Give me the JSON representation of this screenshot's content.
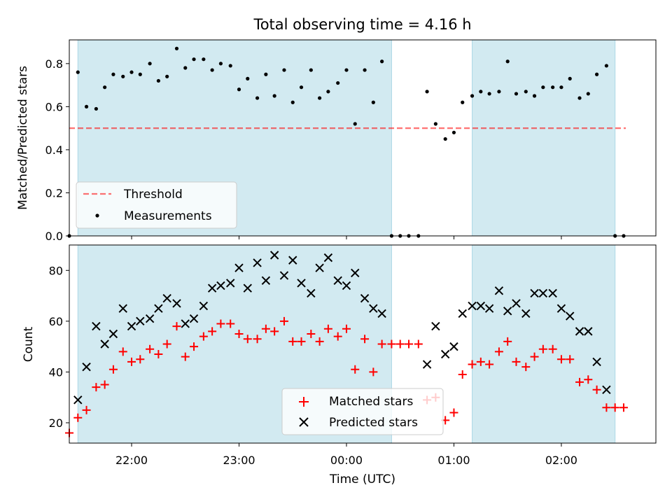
{
  "title": "Total observing time = 4.16 h",
  "colors": {
    "shade": "#add8e6",
    "threshold": "#ff0000",
    "measurement": "#000000",
    "matched": "#ff0000",
    "predicted": "#000000"
  },
  "chart_data": [
    {
      "type": "scatter",
      "panel": "top",
      "title": "Total observing time = 4.16 h",
      "ylabel": "Matched/Predicted stars",
      "xlabel": "",
      "x_unit": "hours UTC (22 = 22:00, 24 = 00:00)",
      "xlim": [
        21.42,
        26.88
      ],
      "ylim": [
        0,
        0.91
      ],
      "yticks": [
        0.0,
        0.2,
        0.4,
        0.6,
        0.8
      ],
      "ytick_labels": [
        "0.0",
        "0.2",
        "0.4",
        "0.6",
        "0.8"
      ],
      "shaded_intervals": [
        [
          21.5,
          24.42
        ],
        [
          25.17,
          26.5
        ]
      ],
      "threshold": {
        "y": 0.5,
        "x_range": [
          21.42,
          26.6
        ],
        "label": "Threshold"
      },
      "legend": {
        "position": "lower-left",
        "entries": [
          "Threshold",
          "Measurements"
        ]
      },
      "series": [
        {
          "name": "Measurements",
          "marker": "dot",
          "points": [
            [
              21.42,
              0.0
            ],
            [
              21.5,
              0.76
            ],
            [
              21.58,
              0.6
            ],
            [
              21.67,
              0.59
            ],
            [
              21.75,
              0.69
            ],
            [
              21.83,
              0.75
            ],
            [
              21.92,
              0.74
            ],
            [
              22.0,
              0.76
            ],
            [
              22.08,
              0.75
            ],
            [
              22.17,
              0.8
            ],
            [
              22.25,
              0.72
            ],
            [
              22.33,
              0.74
            ],
            [
              22.42,
              0.87
            ],
            [
              22.5,
              0.78
            ],
            [
              22.58,
              0.82
            ],
            [
              22.67,
              0.82
            ],
            [
              22.75,
              0.77
            ],
            [
              22.83,
              0.8
            ],
            [
              22.92,
              0.79
            ],
            [
              23.0,
              0.68
            ],
            [
              23.08,
              0.73
            ],
            [
              23.17,
              0.64
            ],
            [
              23.25,
              0.75
            ],
            [
              23.33,
              0.65
            ],
            [
              23.42,
              0.77
            ],
            [
              23.5,
              0.62
            ],
            [
              23.58,
              0.69
            ],
            [
              23.67,
              0.77
            ],
            [
              23.75,
              0.64
            ],
            [
              23.83,
              0.67
            ],
            [
              23.92,
              0.71
            ],
            [
              24.0,
              0.77
            ],
            [
              24.08,
              0.52
            ],
            [
              24.17,
              0.77
            ],
            [
              24.25,
              0.62
            ],
            [
              24.33,
              0.81
            ],
            [
              24.42,
              0.0
            ],
            [
              24.5,
              0.0
            ],
            [
              24.58,
              0.0
            ],
            [
              24.67,
              0.0
            ],
            [
              24.75,
              0.67
            ],
            [
              24.83,
              0.52
            ],
            [
              24.92,
              0.45
            ],
            [
              25.0,
              0.48
            ],
            [
              25.08,
              0.62
            ],
            [
              25.17,
              0.65
            ],
            [
              25.25,
              0.67
            ],
            [
              25.33,
              0.66
            ],
            [
              25.42,
              0.67
            ],
            [
              25.5,
              0.81
            ],
            [
              25.58,
              0.66
            ],
            [
              25.67,
              0.67
            ],
            [
              25.75,
              0.65
            ],
            [
              25.83,
              0.69
            ],
            [
              25.92,
              0.69
            ],
            [
              26.0,
              0.69
            ],
            [
              26.08,
              0.73
            ],
            [
              26.17,
              0.64
            ],
            [
              26.25,
              0.66
            ],
            [
              26.33,
              0.75
            ],
            [
              26.42,
              0.79
            ],
            [
              26.5,
              0.0
            ],
            [
              26.58,
              0.0
            ]
          ]
        }
      ]
    },
    {
      "type": "scatter",
      "panel": "bottom",
      "ylabel": "Count",
      "xlabel": "Time (UTC)",
      "x_unit": "hours UTC (22 = 22:00, 24 = 00:00)",
      "xlim": [
        21.42,
        26.88
      ],
      "ylim": [
        12,
        90
      ],
      "xticks": [
        22,
        23,
        24,
        25,
        26
      ],
      "xtick_labels": [
        "22:00",
        "23:00",
        "00:00",
        "01:00",
        "02:00"
      ],
      "yticks": [
        20,
        40,
        60,
        80
      ],
      "ytick_labels": [
        "20",
        "40",
        "60",
        "80"
      ],
      "shaded_intervals": [
        [
          21.5,
          24.42
        ],
        [
          25.17,
          26.5
        ]
      ],
      "legend": {
        "position": "lower-center",
        "entries": [
          "Matched stars",
          "Predicted stars"
        ]
      },
      "series": [
        {
          "name": "Matched stars",
          "marker": "plus",
          "points": [
            [
              21.42,
              16
            ],
            [
              21.5,
              22
            ],
            [
              21.58,
              25
            ],
            [
              21.67,
              34
            ],
            [
              21.75,
              35
            ],
            [
              21.83,
              41
            ],
            [
              21.92,
              48
            ],
            [
              22.0,
              44
            ],
            [
              22.08,
              45
            ],
            [
              22.17,
              49
            ],
            [
              22.25,
              47
            ],
            [
              22.33,
              51
            ],
            [
              22.42,
              58
            ],
            [
              22.5,
              46
            ],
            [
              22.58,
              50
            ],
            [
              22.67,
              54
            ],
            [
              22.75,
              56
            ],
            [
              22.83,
              59
            ],
            [
              22.92,
              59
            ],
            [
              23.0,
              55
            ],
            [
              23.08,
              53
            ],
            [
              23.17,
              53
            ],
            [
              23.25,
              57
            ],
            [
              23.33,
              56
            ],
            [
              23.42,
              60
            ],
            [
              23.5,
              52
            ],
            [
              23.58,
              52
            ],
            [
              23.67,
              55
            ],
            [
              23.75,
              52
            ],
            [
              23.83,
              57
            ],
            [
              23.92,
              54
            ],
            [
              24.0,
              57
            ],
            [
              24.08,
              41
            ],
            [
              24.17,
              53
            ],
            [
              24.25,
              40
            ],
            [
              24.33,
              51
            ],
            [
              24.42,
              51
            ],
            [
              24.5,
              51
            ],
            [
              24.58,
              51
            ],
            [
              24.67,
              51
            ],
            [
              24.75,
              29
            ],
            [
              24.83,
              30
            ],
            [
              24.92,
              21
            ],
            [
              25.0,
              24
            ],
            [
              25.08,
              39
            ],
            [
              25.17,
              43
            ],
            [
              25.25,
              44
            ],
            [
              25.33,
              43
            ],
            [
              25.42,
              48
            ],
            [
              25.5,
              52
            ],
            [
              25.58,
              44
            ],
            [
              25.67,
              42
            ],
            [
              25.75,
              46
            ],
            [
              25.83,
              49
            ],
            [
              25.92,
              49
            ],
            [
              26.0,
              45
            ],
            [
              26.08,
              45
            ],
            [
              26.17,
              36
            ],
            [
              26.25,
              37
            ],
            [
              26.33,
              33
            ],
            [
              26.42,
              26
            ],
            [
              26.5,
              26
            ],
            [
              26.58,
              26
            ]
          ]
        },
        {
          "name": "Predicted stars",
          "marker": "x",
          "points": [
            [
              21.5,
              29
            ],
            [
              21.58,
              42
            ],
            [
              21.67,
              58
            ],
            [
              21.75,
              51
            ],
            [
              21.83,
              55
            ],
            [
              21.92,
              65
            ],
            [
              22.0,
              58
            ],
            [
              22.08,
              60
            ],
            [
              22.17,
              61
            ],
            [
              22.25,
              65
            ],
            [
              22.33,
              69
            ],
            [
              22.42,
              67
            ],
            [
              22.5,
              59
            ],
            [
              22.58,
              61
            ],
            [
              22.67,
              66
            ],
            [
              22.75,
              73
            ],
            [
              22.83,
              74
            ],
            [
              22.92,
              75
            ],
            [
              23.0,
              81
            ],
            [
              23.08,
              73
            ],
            [
              23.17,
              83
            ],
            [
              23.25,
              76
            ],
            [
              23.33,
              86
            ],
            [
              23.42,
              78
            ],
            [
              23.5,
              84
            ],
            [
              23.58,
              75
            ],
            [
              23.67,
              71
            ],
            [
              23.75,
              81
            ],
            [
              23.83,
              85
            ],
            [
              23.92,
              76
            ],
            [
              24.0,
              74
            ],
            [
              24.08,
              79
            ],
            [
              24.17,
              69
            ],
            [
              24.25,
              65
            ],
            [
              24.33,
              63
            ],
            [
              24.83,
              58
            ],
            [
              24.75,
              43
            ],
            [
              24.92,
              47
            ],
            [
              25.0,
              50
            ],
            [
              25.08,
              63
            ],
            [
              25.17,
              66
            ],
            [
              25.25,
              66
            ],
            [
              25.33,
              65
            ],
            [
              25.42,
              72
            ],
            [
              25.5,
              64
            ],
            [
              25.58,
              67
            ],
            [
              25.67,
              63
            ],
            [
              25.75,
              71
            ],
            [
              25.83,
              71
            ],
            [
              25.92,
              71
            ],
            [
              26.0,
              65
            ],
            [
              26.08,
              62
            ],
            [
              26.17,
              56
            ],
            [
              26.25,
              56
            ],
            [
              26.33,
              44
            ],
            [
              26.42,
              33
            ]
          ]
        }
      ]
    }
  ]
}
